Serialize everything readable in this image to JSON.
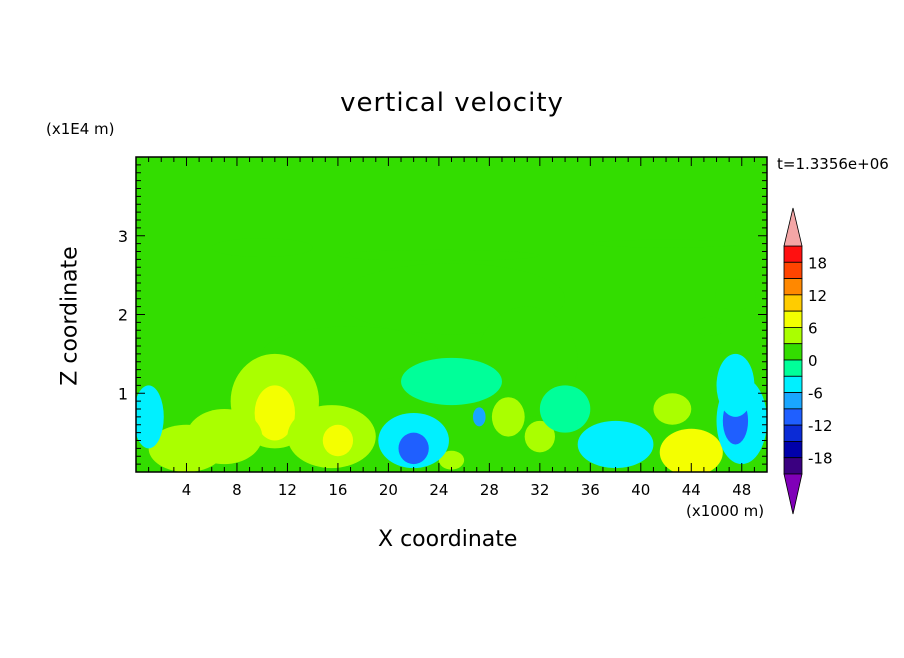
{
  "chart_data": {
    "type": "heatmap",
    "title": "vertical velocity",
    "xlabel": "X coordinate",
    "ylabel": "Z coordinate",
    "x_units": "(x1000 m)",
    "y_units": "(x1E4 m)",
    "time_label": "t=1.3356e+06",
    "xlim": [
      0,
      50
    ],
    "ylim": [
      0,
      4
    ],
    "x_ticks": [
      4,
      8,
      12,
      16,
      20,
      24,
      28,
      32,
      36,
      40,
      44,
      48
    ],
    "y_ticks": [
      1,
      2,
      3
    ],
    "colorbar": {
      "levels": [
        -21,
        -18,
        -15,
        -12,
        -9,
        -6,
        -3,
        0,
        3,
        6,
        9,
        12,
        15,
        18,
        21
      ],
      "tick_labels": [
        "18",
        "12",
        "6",
        "0",
        "-6",
        "-12",
        "-18"
      ],
      "tick_values": [
        18,
        12,
        6,
        0,
        -6,
        -12,
        -18
      ],
      "colors": [
        "#3a0080",
        "#0000aa",
        "#0b2bd6",
        "#1f5fff",
        "#19a6ff",
        "#00f0ff",
        "#00ff99",
        "#33dd00",
        "#aaff00",
        "#f4ff00",
        "#ffcc00",
        "#ff8800",
        "#ff4400",
        "#ff1010"
      ],
      "under_color": "#8000b8",
      "over_color": "#f4a6a6"
    },
    "background_value": 1,
    "features": [
      {
        "x": 25,
        "z": 2.2,
        "rx": 9,
        "rz": 0.45,
        "value": 2
      },
      {
        "x": 17,
        "z": 1.5,
        "rx": 7,
        "rz": 0.35,
        "value": 2
      },
      {
        "x": 31,
        "z": 1.4,
        "rx": 4,
        "rz": 0.7,
        "value": 2
      },
      {
        "x": 47.5,
        "z": 2.25,
        "rx": 1.6,
        "rz": 0.2,
        "value": 2
      },
      {
        "x": 45.5,
        "z": 1.85,
        "rx": 1.3,
        "rz": 0.12,
        "value": 2
      },
      {
        "x": 10,
        "z": 2.85,
        "rx": 4,
        "rz": 0.12,
        "value": 2
      },
      {
        "x": 24,
        "z": 2.75,
        "rx": 8,
        "rz": 0.07,
        "value": 2
      },
      {
        "x": 42,
        "z": 2.9,
        "rx": 6,
        "rz": 0.05,
        "value": 2
      },
      {
        "x": 11,
        "z": 0.9,
        "rx": 3.5,
        "rz": 0.6,
        "value": 5
      },
      {
        "x": 11,
        "z": 0.75,
        "rx": 1.6,
        "rz": 0.35,
        "value": 8
      },
      {
        "x": 15.5,
        "z": 0.45,
        "rx": 3.5,
        "rz": 0.4,
        "value": 5
      },
      {
        "x": 16,
        "z": 0.4,
        "rx": 1.2,
        "rz": 0.2,
        "value": 8
      },
      {
        "x": 7,
        "z": 0.45,
        "rx": 3,
        "rz": 0.35,
        "value": 4
      },
      {
        "x": 4,
        "z": 0.3,
        "rx": 3,
        "rz": 0.3,
        "value": 3
      },
      {
        "x": 29.5,
        "z": 0.7,
        "rx": 1.3,
        "rz": 0.25,
        "value": 5
      },
      {
        "x": 32,
        "z": 0.45,
        "rx": 1.2,
        "rz": 0.2,
        "value": 5
      },
      {
        "x": 44,
        "z": 0.25,
        "rx": 2.5,
        "rz": 0.3,
        "value": 7
      },
      {
        "x": 42.5,
        "z": 0.8,
        "rx": 1.5,
        "rz": 0.2,
        "value": 3
      },
      {
        "x": 25,
        "z": 0.15,
        "rx": 1,
        "rz": 0.12,
        "value": 4
      },
      {
        "x": 22,
        "z": 0.4,
        "rx": 2.8,
        "rz": 0.35,
        "value": -6
      },
      {
        "x": 22,
        "z": 0.3,
        "rx": 1.2,
        "rz": 0.2,
        "value": -11
      },
      {
        "x": 48,
        "z": 0.65,
        "rx": 2,
        "rz": 0.55,
        "value": -6
      },
      {
        "x": 47.5,
        "z": 0.65,
        "rx": 1,
        "rz": 0.3,
        "value": -11
      },
      {
        "x": 38,
        "z": 0.35,
        "rx": 3,
        "rz": 0.3,
        "value": -4
      },
      {
        "x": 25,
        "z": 1.15,
        "rx": 4,
        "rz": 0.3,
        "value": -3
      },
      {
        "x": 1,
        "z": 0.7,
        "rx": 1.2,
        "rz": 0.4,
        "value": -4
      },
      {
        "x": 34,
        "z": 0.8,
        "rx": 2,
        "rz": 0.3,
        "value": -3
      },
      {
        "x": 27.2,
        "z": 0.7,
        "rx": 0.5,
        "rz": 0.12,
        "value": -8
      },
      {
        "x": 47.5,
        "z": 1.1,
        "rx": 1.5,
        "rz": 0.4,
        "value": -4
      }
    ]
  }
}
